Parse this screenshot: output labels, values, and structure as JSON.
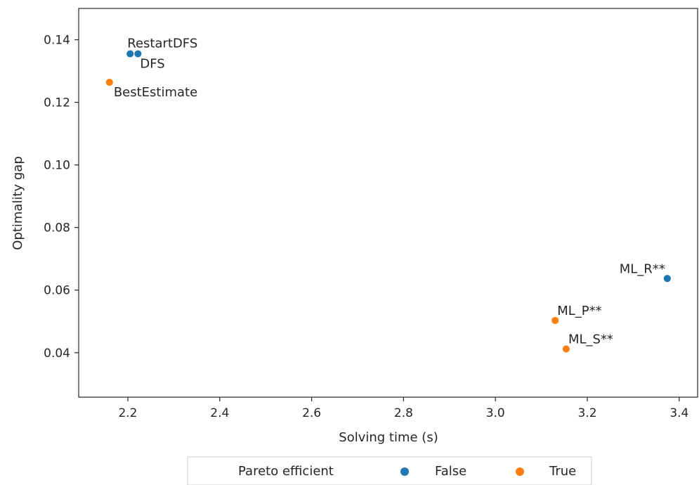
{
  "chart_data": {
    "type": "scatter",
    "xlabel": "Solving time (s)",
    "ylabel": "Optimality gap",
    "xlim": [
      2.093,
      3.44
    ],
    "ylim": [
      0.0258,
      0.15
    ],
    "xticks": [
      2.2,
      2.4,
      2.6,
      2.8,
      3.0,
      3.2,
      3.4
    ],
    "xtick_labels": [
      "2.2",
      "2.4",
      "2.6",
      "2.8",
      "3.0",
      "3.2",
      "3.4"
    ],
    "yticks": [
      0.04,
      0.06,
      0.08,
      0.1,
      0.12,
      0.14
    ],
    "ytick_labels": [
      "0.04",
      "0.06",
      "0.08",
      "0.10",
      "0.12",
      "0.14"
    ],
    "grid": false,
    "legend": {
      "title": "Pareto efficient",
      "placement": "bottom-center-outside",
      "entries": [
        {
          "label": "False",
          "color": "#1f77b4"
        },
        {
          "label": "True",
          "color": "#ff7f0e"
        }
      ]
    },
    "points": [
      {
        "label": "RestartDFS",
        "x": 2.205,
        "y": 0.1355,
        "series": "False",
        "anchor": "start",
        "dx": -4,
        "dy": -9
      },
      {
        "label": "DFS",
        "x": 2.222,
        "y": 0.1355,
        "series": "False",
        "anchor": "start",
        "dx": 3,
        "dy": 20
      },
      {
        "label": "BestEstimate",
        "x": 2.16,
        "y": 0.1264,
        "series": "True",
        "anchor": "start",
        "dx": 6,
        "dy": 20
      },
      {
        "label": "ML_R**",
        "x": 3.374,
        "y": 0.0637,
        "series": "False",
        "anchor": "end",
        "dx": -3,
        "dy": -8
      },
      {
        "label": "ML_P**",
        "x": 3.13,
        "y": 0.0503,
        "series": "True",
        "anchor": "start",
        "dx": 3,
        "dy": -8
      },
      {
        "label": "ML_S**",
        "x": 3.154,
        "y": 0.0412,
        "series": "True",
        "anchor": "start",
        "dx": 3,
        "dy": -8
      }
    ]
  }
}
